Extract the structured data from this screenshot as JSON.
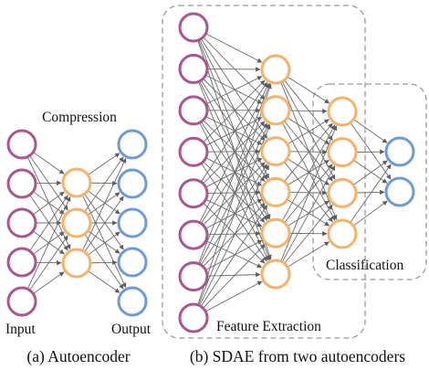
{
  "colors": {
    "input": "#a8578f",
    "hidden": "#f4b26a",
    "output": "#6f9ad8",
    "edge": "#6b6b6b",
    "box": "#9a9a9a"
  },
  "diagram_a": {
    "top_label": "Compression",
    "input_label": "Input",
    "output_label": "Output",
    "caption": "(a) Autoencoder",
    "layers": {
      "input": {
        "count": 5
      },
      "hidden": {
        "count": 3
      },
      "output": {
        "count": 5
      }
    }
  },
  "diagram_b": {
    "feature_label": "Feature Extraction",
    "class_label": "Classification",
    "caption": "(b) SDAE from two autoencoders",
    "layers": {
      "input": {
        "count": 8
      },
      "hidden1": {
        "count": 6
      },
      "hidden2": {
        "count": 4
      },
      "output": {
        "count": 2
      }
    }
  }
}
